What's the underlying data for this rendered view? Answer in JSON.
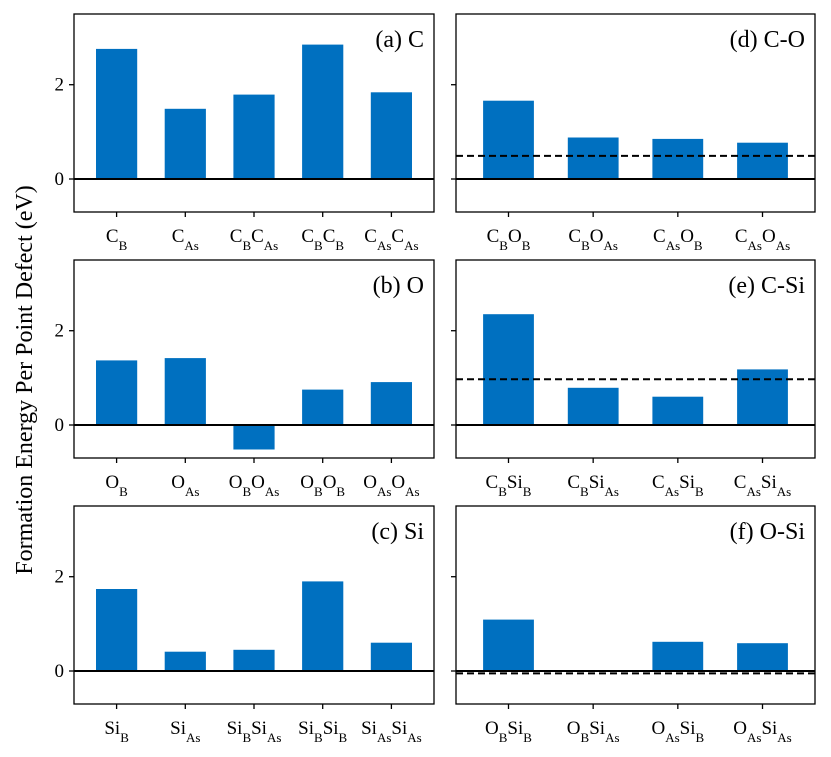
{
  "ylabel": "Formation Energy Per Point Defect (eV)",
  "colors": {
    "bar": "#0070c0",
    "axis": "#000000",
    "reference": "#000000"
  },
  "chart_data": [
    {
      "type": "bar",
      "label": "(a) C",
      "categories": [
        {
          "base": "C",
          "sub": "B"
        },
        {
          "base": "C",
          "sub": "As"
        },
        {
          "base": "C",
          "sub": "B",
          "base2": "C",
          "sub2": "As"
        },
        {
          "base": "C",
          "sub": "B",
          "base2": "C",
          "sub2": "B"
        },
        {
          "base": "C",
          "sub": "As",
          "base2": "C",
          "sub2": "As"
        }
      ],
      "values": [
        2.76,
        1.49,
        1.79,
        2.85,
        1.84
      ],
      "ylim": [
        -0.7,
        3.5
      ],
      "yticks": [
        "0",
        "2"
      ],
      "reference_line": null
    },
    {
      "type": "bar",
      "label": "(b) O",
      "categories": [
        {
          "base": "O",
          "sub": "B"
        },
        {
          "base": "O",
          "sub": "As"
        },
        {
          "base": "O",
          "sub": "B",
          "base2": "O",
          "sub2": "As"
        },
        {
          "base": "O",
          "sub": "B",
          "base2": "O",
          "sub2": "B"
        },
        {
          "base": "O",
          "sub": "As",
          "base2": "O",
          "sub2": "As"
        }
      ],
      "values": [
        1.37,
        1.42,
        -0.52,
        0.75,
        0.91
      ],
      "ylim": [
        -0.7,
        3.5
      ],
      "yticks": [
        "0",
        "2"
      ],
      "reference_line": null
    },
    {
      "type": "bar",
      "label": "(c) Si",
      "categories": [
        {
          "base": "Si",
          "sub": "B"
        },
        {
          "base": "Si",
          "sub": "As"
        },
        {
          "base": "Si",
          "sub": "B",
          "base2": "Si",
          "sub2": "As"
        },
        {
          "base": "Si",
          "sub": "B",
          "base2": "Si",
          "sub2": "B"
        },
        {
          "base": "Si",
          "sub": "As",
          "base2": "Si",
          "sub2": "As"
        }
      ],
      "values": [
        1.74,
        0.41,
        0.45,
        1.9,
        0.6
      ],
      "ylim": [
        -0.7,
        3.5
      ],
      "yticks": [
        "0",
        "2"
      ],
      "reference_line": null
    },
    {
      "type": "bar",
      "label": "(d) C-O",
      "categories": [
        {
          "base": "C",
          "sub": "B",
          "base2": "O",
          "sub2": "B"
        },
        {
          "base": "C",
          "sub": "B",
          "base2": "O",
          "sub2": "As"
        },
        {
          "base": "C",
          "sub": "As",
          "base2": "O",
          "sub2": "B"
        },
        {
          "base": "C",
          "sub": "As",
          "base2": "O",
          "sub2": "As"
        }
      ],
      "values": [
        1.66,
        0.88,
        0.85,
        0.77
      ],
      "ylim": [
        -0.7,
        3.5
      ],
      "yticks": [],
      "reference_line": 0.49
    },
    {
      "type": "bar",
      "label": "(e) C-Si",
      "categories": [
        {
          "base": "C",
          "sub": "B",
          "base2": "Si",
          "sub2": "B"
        },
        {
          "base": "C",
          "sub": "B",
          "base2": "Si",
          "sub2": "As"
        },
        {
          "base": "C",
          "sub": "As",
          "base2": "Si",
          "sub2": "B"
        },
        {
          "base": "C",
          "sub": "As",
          "base2": "Si",
          "sub2": "As"
        }
      ],
      "values": [
        2.35,
        0.79,
        0.6,
        1.18
      ],
      "ylim": [
        -0.7,
        3.5
      ],
      "yticks": [],
      "reference_line": 0.97
    },
    {
      "type": "bar",
      "label": "(f) O-Si",
      "categories": [
        {
          "base": "O",
          "sub": "B",
          "base2": "Si",
          "sub2": "B"
        },
        {
          "base": "O",
          "sub": "B",
          "base2": "Si",
          "sub2": "As"
        },
        {
          "base": "O",
          "sub": "As",
          "base2": "Si",
          "sub2": "B"
        },
        {
          "base": "O",
          "sub": "As",
          "base2": "Si",
          "sub2": "As"
        }
      ],
      "values": [
        1.09,
        null,
        0.62,
        0.59
      ],
      "ylim": [
        -0.7,
        3.5
      ],
      "yticks": [],
      "reference_line": -0.05
    }
  ]
}
